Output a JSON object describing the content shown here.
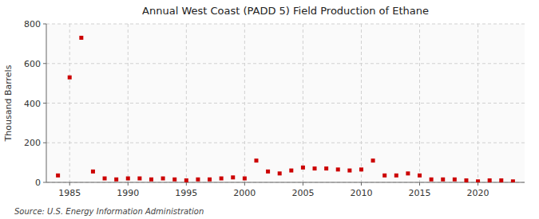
{
  "chart_data": {
    "type": "scatter",
    "title": "Annual West Coast (PADD 5) Field Production of Ethane",
    "ylabel": "Thousand Barrels",
    "annotation": "Source: U.S. Energy Information Administration",
    "x": [
      1984,
      1985,
      1986,
      1987,
      1988,
      1989,
      1990,
      1991,
      1992,
      1993,
      1994,
      1995,
      1996,
      1997,
      1998,
      1999,
      2000,
      2001,
      2002,
      2003,
      2004,
      2005,
      2006,
      2007,
      2008,
      2009,
      2010,
      2011,
      2012,
      2013,
      2014,
      2015,
      2016,
      2017,
      2018,
      2019,
      2020,
      2021,
      2022,
      2023
    ],
    "values": [
      35,
      530,
      730,
      55,
      20,
      15,
      20,
      20,
      15,
      20,
      15,
      10,
      15,
      15,
      20,
      25,
      20,
      110,
      55,
      45,
      60,
      75,
      70,
      70,
      65,
      60,
      65,
      110,
      35,
      35,
      45,
      35,
      15,
      15,
      15,
      10,
      5,
      10,
      10,
      5
    ],
    "color": "#cc0000",
    "marker": "square",
    "xlim": [
      1983,
      2024
    ],
    "xticks": [
      1985,
      1990,
      1995,
      2000,
      2005,
      2010,
      2015,
      2020
    ],
    "ylim": [
      0,
      800
    ],
    "yticks": [
      0,
      200,
      400,
      600,
      800
    ],
    "grid": true
  }
}
